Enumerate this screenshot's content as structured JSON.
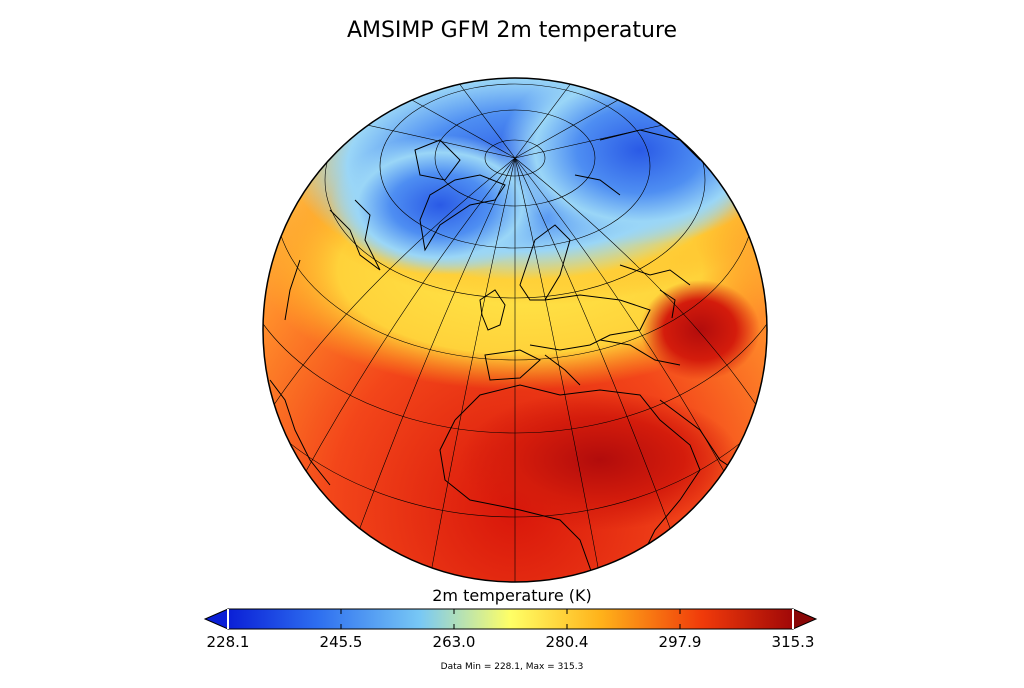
{
  "title": "AMSIMP GFM 2m temperature",
  "colorbar": {
    "label": "2m temperature (K)",
    "ticks": [
      "228.1",
      "245.5",
      "263.0",
      "280.4",
      "297.9",
      "315.3"
    ],
    "colors": [
      "#0a1fd6",
      "#2e6ff0",
      "#78c8f5",
      "#ffff66",
      "#ffb21a",
      "#f03a0a",
      "#a00808"
    ]
  },
  "stats": "Data Min = 228.1, Max = 315.3"
}
